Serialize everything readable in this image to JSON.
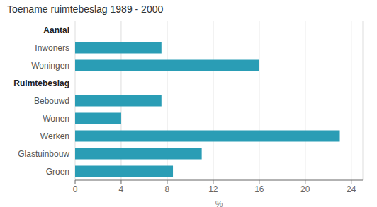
{
  "chart_data": {
    "type": "bar",
    "title": "Toename ruimtebeslag 1989 - 2000",
    "orientation": "horizontal",
    "categories": [
      "Aantal",
      "Inwoners",
      "Woningen",
      "Ruimtebeslag",
      "Bebouwd",
      "Wonen",
      "Werken",
      "Glastuinbouw",
      "Groen"
    ],
    "values": [
      null,
      7.5,
      16.0,
      null,
      7.5,
      4.0,
      23.0,
      11.0,
      8.5
    ],
    "color": "#2a9db5",
    "xlabel": "%",
    "xlim": [
      0,
      25
    ],
    "xticks": [
      0,
      4,
      8,
      12,
      16,
      20,
      24
    ],
    "grid": true
  }
}
